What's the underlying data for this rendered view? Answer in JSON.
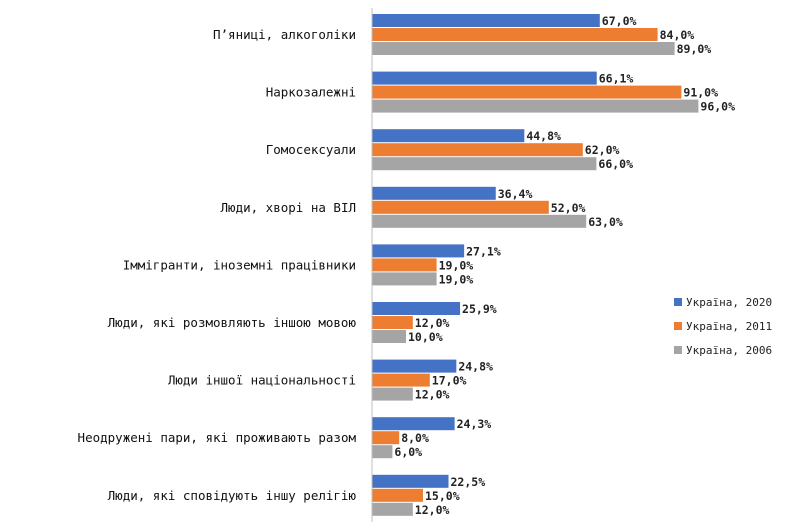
{
  "colors": {
    "Україна, 2020": "#4472c4",
    "Україна, 2011": "#ed7d31",
    "Україна, 2006": "#a5a5a5"
  },
  "chart_data": {
    "type": "bar",
    "orientation": "horizontal",
    "categories": [
      "П’яниці, алкоголіки",
      "Наркозалежні",
      "Гомосексуали",
      "Люди, хворі на ВІЛ",
      "Іммігранти, іноземні працівники",
      "Люди, які розмовляють іншою мовою",
      "Люди іншої національності",
      "Неодружені пари, які проживають разом",
      "Люди, які сповідують іншу релігію"
    ],
    "series": [
      {
        "name": "Україна, 2020",
        "values": [
          67.0,
          66.1,
          44.8,
          36.4,
          27.1,
          25.9,
          24.8,
          24.3,
          22.5
        ],
        "labels": [
          "67,0%",
          "66,1%",
          "44,8%",
          "36,4%",
          "27,1%",
          "25,9%",
          "24,8%",
          "24,3%",
          "22,5%"
        ]
      },
      {
        "name": "Україна, 2011",
        "values": [
          84.0,
          91.0,
          62.0,
          52.0,
          19.0,
          12.0,
          17.0,
          8.0,
          15.0
        ],
        "labels": [
          "84,0%",
          "91,0%",
          "62,0%",
          "52,0%",
          "19,0%",
          "12,0%",
          "17,0%",
          "8,0%",
          "15,0%"
        ]
      },
      {
        "name": "Україна, 2006",
        "values": [
          89.0,
          96.0,
          66.0,
          63.0,
          19.0,
          10.0,
          12.0,
          6.0,
          12.0
        ],
        "labels": [
          "89,0%",
          "96,0%",
          "66,0%",
          "63,0%",
          "19,0%",
          "10,0%",
          "12,0%",
          "6,0%",
          "12,0%"
        ]
      }
    ],
    "xlim": [
      0,
      100
    ],
    "grid": false,
    "legend_position": "right"
  }
}
